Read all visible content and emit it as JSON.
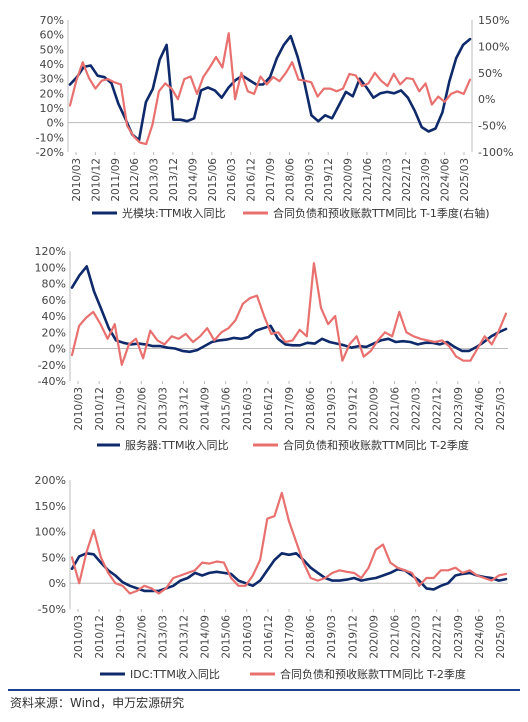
{
  "colors": {
    "navy": "#0f2a6b",
    "salmon": "#e8716f",
    "axis": "#bdbdbd",
    "text": "#444444",
    "footer_line": "#1f3f8f"
  },
  "source": "资料来源：Wind，申万宏源研究",
  "chart_data": [
    {
      "type": "line",
      "x_ticks": [
        "2010/03",
        "2010/12",
        "2011/09",
        "2012/06",
        "2013/03",
        "2013/12",
        "2014/09",
        "2015/06",
        "2016/03",
        "2016/12",
        "2017/09",
        "2018/06",
        "2019/03",
        "2019/12",
        "2020/09",
        "2021/06",
        "2022/03",
        "2022/12",
        "2023/09",
        "2024/06",
        "2025/03"
      ],
      "yticks": [
        "70%",
        "60%",
        "50%",
        "40%",
        "30%",
        "20%",
        "10%",
        "0%",
        "-10%",
        "-20%"
      ],
      "ylim": [
        -20,
        70
      ],
      "y2ticks": [
        "150%",
        "100%",
        "50%",
        "0%",
        "-50%",
        "-100%"
      ],
      "y2lim": [
        -100,
        150
      ],
      "series": [
        {
          "name": "光模块:TTM收入同比",
          "axis": "left",
          "color": "#0f2a6b",
          "values": [
            26,
            31,
            38,
            39,
            32,
            31,
            27,
            13,
            3,
            -8,
            -12,
            14,
            23,
            43,
            53,
            2,
            2,
            1,
            3,
            22,
            24,
            22,
            17,
            24,
            29,
            32,
            29,
            26,
            26,
            31,
            44,
            53,
            59,
            45,
            27,
            5,
            1,
            5,
            3,
            12,
            21,
            18,
            30,
            24,
            17,
            20,
            21,
            20,
            22,
            17,
            8,
            -3,
            -6,
            -4,
            7,
            28,
            44,
            53,
            57
          ]
        },
        {
          "name": "合同负债和预收账款TTM同比 T-1季度(右轴)",
          "axis": "right",
          "color": "#e8716f",
          "values": [
            -12,
            35,
            70,
            40,
            20,
            35,
            38,
            32,
            28,
            -50,
            -70,
            -82,
            -85,
            -48,
            15,
            30,
            20,
            0,
            38,
            43,
            10,
            42,
            60,
            80,
            60,
            125,
            0,
            50,
            15,
            10,
            43,
            28,
            42,
            34,
            50,
            70,
            37,
            35,
            32,
            5,
            20,
            20,
            15,
            20,
            48,
            45,
            25,
            30,
            50,
            35,
            25,
            48,
            28,
            40,
            38,
            15,
            30,
            -10,
            5,
            -5,
            10,
            15,
            10,
            37
          ]
        }
      ]
    },
    {
      "type": "line",
      "x_ticks": [
        "2010/03",
        "2010/12",
        "2011/09",
        "2012/06",
        "2013/03",
        "2013/12",
        "2014/09",
        "2015/06",
        "2016/03",
        "2016/12",
        "2017/09",
        "2018/06",
        "2019/03",
        "2019/12",
        "2020/09",
        "2021/06",
        "2022/03",
        "2022/12",
        "2023/09",
        "2024/06",
        "2025/03"
      ],
      "yticks": [
        "120%",
        "100%",
        "80%",
        "60%",
        "40%",
        "20%",
        "0%",
        "-20%",
        "-40%"
      ],
      "ylim": [
        -40,
        120
      ],
      "series": [
        {
          "name": "服务器:TTM收入同比",
          "color": "#0f2a6b",
          "values": [
            75,
            90,
            101,
            70,
            48,
            25,
            10,
            7,
            5,
            6,
            5,
            3,
            3,
            1,
            0,
            -3,
            -4,
            -2,
            3,
            8,
            10,
            11,
            13,
            12,
            14,
            22,
            25,
            28,
            12,
            5,
            4,
            4,
            7,
            6,
            12,
            8,
            6,
            4,
            1,
            3,
            2,
            6,
            10,
            12,
            8,
            9,
            8,
            5,
            7,
            7,
            5,
            8,
            2,
            -3,
            -3,
            2,
            8,
            15,
            20,
            24
          ]
        },
        {
          "name": "合同负债和预收账款TTM同比 T-2季度",
          "color": "#e8716f",
          "values": [
            -8,
            28,
            38,
            45,
            30,
            12,
            30,
            -20,
            5,
            12,
            -12,
            22,
            10,
            5,
            15,
            12,
            18,
            8,
            15,
            25,
            10,
            20,
            25,
            35,
            55,
            62,
            65,
            40,
            18,
            20,
            8,
            10,
            23,
            15,
            105,
            50,
            30,
            40,
            -15,
            5,
            15,
            -10,
            -3,
            10,
            20,
            15,
            45,
            20,
            15,
            12,
            10,
            8,
            10,
            3,
            -10,
            -15,
            -15,
            0,
            15,
            5,
            22,
            43
          ]
        }
      ]
    },
    {
      "type": "line",
      "x_ticks": [
        "2010/03",
        "2010/12",
        "2011/09",
        "2012/06",
        "2013/03",
        "2013/12",
        "2014/09",
        "2015/06",
        "2016/03",
        "2016/12",
        "2017/09",
        "2018/06",
        "2019/03",
        "2019/12",
        "2020/09",
        "2021/06",
        "2022/03",
        "2022/12",
        "2023/09",
        "2024/06",
        "2025/03"
      ],
      "yticks": [
        "200%",
        "150%",
        "100%",
        "50%",
        "0%",
        "-50%"
      ],
      "ylim": [
        -50,
        200
      ],
      "series": [
        {
          "name": "IDC:TTM收入同比",
          "color": "#0f2a6b",
          "values": [
            28,
            52,
            58,
            56,
            40,
            25,
            15,
            2,
            -5,
            -10,
            -15,
            -15,
            -15,
            -10,
            -5,
            5,
            10,
            20,
            15,
            20,
            22,
            20,
            18,
            5,
            0,
            -5,
            5,
            25,
            45,
            58,
            55,
            58,
            45,
            30,
            20,
            10,
            5,
            5,
            7,
            10,
            5,
            8,
            10,
            15,
            20,
            27,
            25,
            15,
            5,
            -10,
            -12,
            -5,
            0,
            15,
            18,
            20,
            15,
            12,
            10,
            5,
            8
          ]
        },
        {
          "name": "合同负债和预收账款TTM同比 T-2季度",
          "color": "#e8716f",
          "values": [
            50,
            0,
            60,
            103,
            50,
            20,
            0,
            -5,
            -20,
            -15,
            -5,
            -10,
            -20,
            -10,
            10,
            15,
            20,
            25,
            40,
            38,
            42,
            40,
            10,
            -5,
            -5,
            15,
            45,
            125,
            130,
            175,
            120,
            80,
            40,
            10,
            5,
            10,
            20,
            25,
            22,
            20,
            10,
            30,
            65,
            75,
            40,
            30,
            25,
            20,
            -5,
            10,
            10,
            25,
            25,
            30,
            20,
            25,
            15,
            10,
            5,
            15,
            18
          ]
        }
      ]
    }
  ]
}
